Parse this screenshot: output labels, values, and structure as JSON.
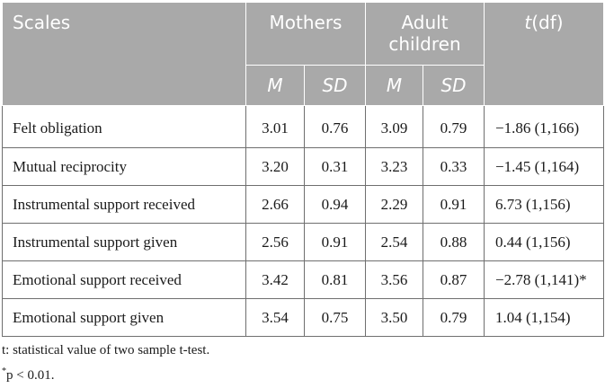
{
  "table": {
    "headers": {
      "scales": "Scales",
      "mothers": "Mothers",
      "adult_children": "Adult children",
      "t_prefix": "t",
      "t_df": "(df)",
      "m": "M",
      "sd": "SD"
    },
    "rows": [
      {
        "label": "Felt obligation",
        "mothers_m": "3.01",
        "mothers_sd": "0.76",
        "children_m": "3.09",
        "children_sd": "0.79",
        "t": "−1.86 (1,166)"
      },
      {
        "label": "Mutual reciprocity",
        "mothers_m": "3.20",
        "mothers_sd": "0.31",
        "children_m": "3.23",
        "children_sd": "0.33",
        "t": "−1.45 (1,164)"
      },
      {
        "label": "Instrumental support received",
        "mothers_m": "2.66",
        "mothers_sd": "0.94",
        "children_m": "2.29",
        "children_sd": "0.91",
        "t": "6.73 (1,156)"
      },
      {
        "label": "Instrumental support given",
        "mothers_m": "2.56",
        "mothers_sd": "0.91",
        "children_m": "2.54",
        "children_sd": "0.88",
        "t": "0.44 (1,156)"
      },
      {
        "label": "Emotional support received",
        "mothers_m": "3.42",
        "mothers_sd": "0.81",
        "children_m": "3.56",
        "children_sd": "0.87",
        "t": "−2.78 (1,141)*"
      },
      {
        "label": "Emotional support given",
        "mothers_m": "3.54",
        "mothers_sd": "0.75",
        "children_m": "3.50",
        "children_sd": "0.79",
        "t": "1.04 (1,154)"
      }
    ]
  },
  "notes": {
    "line1": "t: statistical value of two sample t-test.",
    "line2_star": "*",
    "line2": "p < 0.01."
  }
}
